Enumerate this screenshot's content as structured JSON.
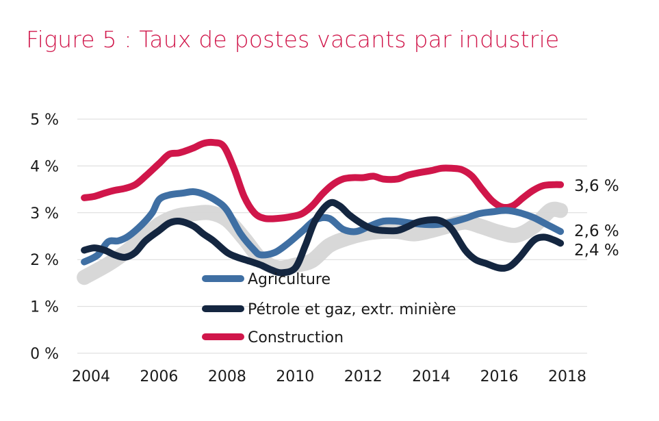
{
  "title": "Figure 5 : Taux de postes vacants par industrie",
  "colors": {
    "title": "#d0164a",
    "grid": "#d9d9d9",
    "agriculture": "#3f6fa3",
    "petrole": "#142640",
    "construction": "#d0164a",
    "band": "#d6d6d6"
  },
  "chart_data": {
    "type": "line",
    "ylim": [
      0,
      5
    ],
    "xlim": [
      2003.8,
      2018.0
    ],
    "ytick_labels": [
      "0 %",
      "1 %",
      "2 %",
      "3 %",
      "4 %",
      "5 %"
    ],
    "ytick_values": [
      0,
      1,
      2,
      3,
      4,
      5
    ],
    "xtick_labels": [
      "2004",
      "2006",
      "2008",
      "2010",
      "2012",
      "2014",
      "2016",
      "2018"
    ],
    "xtick_values": [
      2004,
      2006,
      2008,
      2010,
      2012,
      2014,
      2016,
      2018
    ],
    "grid": true,
    "legend_position": "bottom-center",
    "band": {
      "x": [
        2003.8,
        2004.5,
        2005.0,
        2005.5,
        2006.0,
        2006.5,
        2007.0,
        2007.5,
        2008.0,
        2008.5,
        2009.0,
        2009.5,
        2010.0,
        2010.5,
        2011.0,
        2011.5,
        2012.0,
        2012.5,
        2013.0,
        2013.5,
        2014.0,
        2014.5,
        2015.0,
        2015.5,
        2016.0,
        2016.5,
        2017.0,
        2017.5,
        2017.8
      ],
      "values": [
        1.62,
        1.9,
        2.15,
        2.45,
        2.75,
        2.92,
        2.98,
        3.0,
        2.85,
        2.45,
        2.0,
        1.82,
        1.88,
        1.98,
        2.3,
        2.45,
        2.55,
        2.6,
        2.6,
        2.55,
        2.62,
        2.72,
        2.8,
        2.7,
        2.58,
        2.52,
        2.7,
        3.05,
        3.05
      ]
    },
    "series": [
      {
        "name": "Agriculture",
        "color_key": "agriculture",
        "end_label": "2,6 %",
        "x": [
          2003.8,
          2004.2,
          2004.5,
          2004.8,
          2005.1,
          2005.5,
          2005.8,
          2006.0,
          2006.3,
          2006.7,
          2007.0,
          2007.3,
          2007.7,
          2008.0,
          2008.4,
          2008.8,
          2009.0,
          2009.4,
          2009.8,
          2010.2,
          2010.6,
          2011.0,
          2011.4,
          2011.8,
          2012.2,
          2012.6,
          2013.0,
          2013.4,
          2013.8,
          2014.2,
          2014.6,
          2015.0,
          2015.4,
          2015.8,
          2016.2,
          2016.6,
          2017.0,
          2017.4,
          2017.8
        ],
        "values": [
          1.95,
          2.1,
          2.38,
          2.4,
          2.5,
          2.75,
          3.0,
          3.28,
          3.38,
          3.42,
          3.45,
          3.4,
          3.25,
          3.05,
          2.55,
          2.2,
          2.1,
          2.15,
          2.35,
          2.6,
          2.85,
          2.88,
          2.65,
          2.6,
          2.72,
          2.82,
          2.82,
          2.78,
          2.75,
          2.75,
          2.8,
          2.88,
          2.98,
          3.02,
          3.05,
          3.0,
          2.9,
          2.75,
          2.6
        ]
      },
      {
        "name": "Pétrole et gaz, extr. minière",
        "color_key": "petrole",
        "end_label": "2,4 %",
        "x": [
          2003.8,
          2004.1,
          2004.4,
          2004.7,
          2005.0,
          2005.3,
          2005.6,
          2006.0,
          2006.3,
          2006.6,
          2007.0,
          2007.3,
          2007.6,
          2008.0,
          2008.3,
          2008.6,
          2009.0,
          2009.3,
          2009.6,
          2010.0,
          2010.3,
          2010.6,
          2011.0,
          2011.3,
          2011.6,
          2012.0,
          2012.3,
          2012.6,
          2013.0,
          2013.3,
          2013.6,
          2014.0,
          2014.3,
          2014.6,
          2015.0,
          2015.3,
          2015.6,
          2016.0,
          2016.3,
          2016.6,
          2017.0,
          2017.3,
          2017.6,
          2017.8
        ],
        "values": [
          2.2,
          2.25,
          2.2,
          2.1,
          2.05,
          2.15,
          2.4,
          2.62,
          2.78,
          2.82,
          2.72,
          2.55,
          2.4,
          2.15,
          2.05,
          1.98,
          1.88,
          1.78,
          1.72,
          1.82,
          2.3,
          2.85,
          3.2,
          3.15,
          2.95,
          2.75,
          2.65,
          2.62,
          2.62,
          2.7,
          2.8,
          2.85,
          2.82,
          2.65,
          2.2,
          2.0,
          1.92,
          1.82,
          1.85,
          2.05,
          2.4,
          2.48,
          2.42,
          2.35
        ]
      },
      {
        "name": "Construction",
        "color_key": "construction",
        "end_label": "3,6 %",
        "x": [
          2003.8,
          2004.1,
          2004.4,
          2004.7,
          2005.0,
          2005.3,
          2005.6,
          2006.0,
          2006.3,
          2006.6,
          2007.0,
          2007.3,
          2007.6,
          2007.9,
          2008.2,
          2008.5,
          2008.8,
          2009.1,
          2009.5,
          2009.9,
          2010.2,
          2010.5,
          2010.8,
          2011.1,
          2011.4,
          2011.7,
          2012.0,
          2012.3,
          2012.6,
          2013.0,
          2013.3,
          2013.6,
          2014.0,
          2014.3,
          2014.6,
          2014.9,
          2015.2,
          2015.5,
          2015.8,
          2016.1,
          2016.4,
          2016.7,
          2017.0,
          2017.3,
          2017.6,
          2017.8
        ],
        "values": [
          3.32,
          3.35,
          3.42,
          3.48,
          3.52,
          3.6,
          3.78,
          4.05,
          4.25,
          4.28,
          4.38,
          4.48,
          4.5,
          4.42,
          3.95,
          3.35,
          3.0,
          2.88,
          2.88,
          2.92,
          2.98,
          3.15,
          3.4,
          3.6,
          3.72,
          3.75,
          3.75,
          3.78,
          3.72,
          3.72,
          3.8,
          3.85,
          3.9,
          3.95,
          3.95,
          3.92,
          3.78,
          3.5,
          3.25,
          3.12,
          3.15,
          3.32,
          3.48,
          3.58,
          3.6,
          3.6
        ]
      }
    ]
  }
}
